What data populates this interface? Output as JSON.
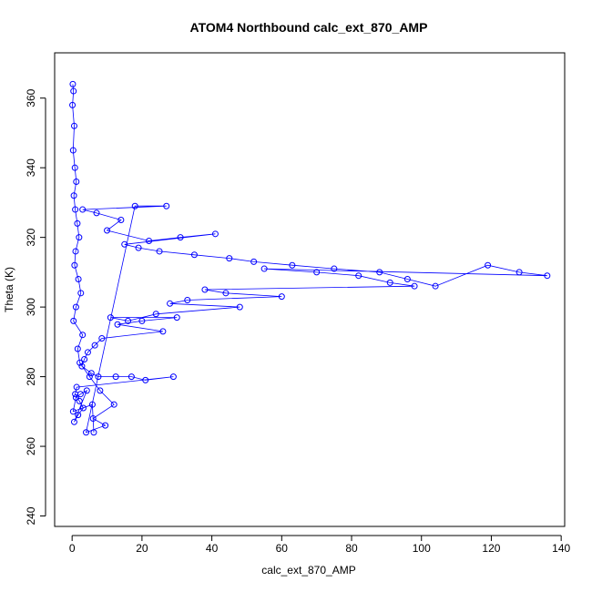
{
  "chart_data": {
    "type": "scatter",
    "title": "ATOM4 Northbound calc_ext_870_AMP",
    "xlabel": "calc_ext_870_AMP",
    "ylabel": "Theta (K)",
    "xlim": [
      -5,
      141
    ],
    "ylim": [
      237,
      373
    ],
    "x_ticks": [
      0,
      20,
      40,
      60,
      80,
      100,
      120,
      140
    ],
    "y_ticks": [
      240,
      260,
      280,
      300,
      320,
      340,
      360
    ],
    "grid": false,
    "legend": "none",
    "color": "#0000ff",
    "marker": "open-circle-with-lines",
    "series": [
      {
        "x": [
          0.2,
          0.4,
          0.1,
          0.6,
          0.3,
          0.8,
          1.2,
          0.5,
          0.9,
          1.5,
          2.0,
          1.0,
          0.7,
          1.8,
          2.5,
          1.1,
          0.4,
          3.0,
          1.6,
          2.2,
          5.0,
          8.0,
          12.0,
          6.0,
          9.5,
          4.0,
          18.0,
          27.0,
          3.0,
          7.0,
          14.0,
          10.0,
          22.0,
          31.0,
          41.0,
          15.0,
          19.0,
          25.0,
          35.0,
          45.0,
          52.0,
          63.0,
          75.0,
          88.0,
          96.0,
          104.0,
          119.0,
          128.0,
          136.0,
          55.0,
          70.0,
          82.0,
          91.0,
          98.0,
          38.0,
          44.0,
          60.0,
          33.0,
          28.0,
          48.0,
          24.0,
          16.0,
          11.0,
          30.0,
          20.0,
          13.0,
          26.0,
          8.5,
          6.5,
          4.5,
          3.5,
          2.8,
          5.5,
          7.5,
          12.5,
          17.0,
          21.0,
          29.0,
          1.3,
          0.9,
          2.1,
          3.2,
          1.7,
          0.6,
          4.2,
          2.4,
          1.1,
          0.3,
          5.8,
          6.2
        ],
        "y": [
          364,
          362,
          358,
          352,
          345,
          340,
          336,
          332,
          328,
          324,
          320,
          316,
          312,
          308,
          304,
          300,
          296,
          292,
          288,
          284,
          280,
          276,
          272,
          268,
          266,
          264,
          329,
          329,
          328,
          327,
          325,
          322,
          319,
          320,
          321,
          318,
          317,
          316,
          315,
          314,
          313,
          312,
          311,
          310,
          308,
          306,
          312,
          310,
          309,
          311,
          310,
          309,
          307,
          306,
          305,
          304,
          303,
          302,
          301,
          300,
          298,
          296,
          297,
          297,
          296,
          295,
          293,
          291,
          289,
          287,
          285,
          283,
          281,
          280,
          280,
          280,
          279,
          280,
          277,
          275,
          273,
          271,
          269,
          267,
          276,
          275,
          274,
          270,
          272,
          264
        ]
      }
    ]
  }
}
